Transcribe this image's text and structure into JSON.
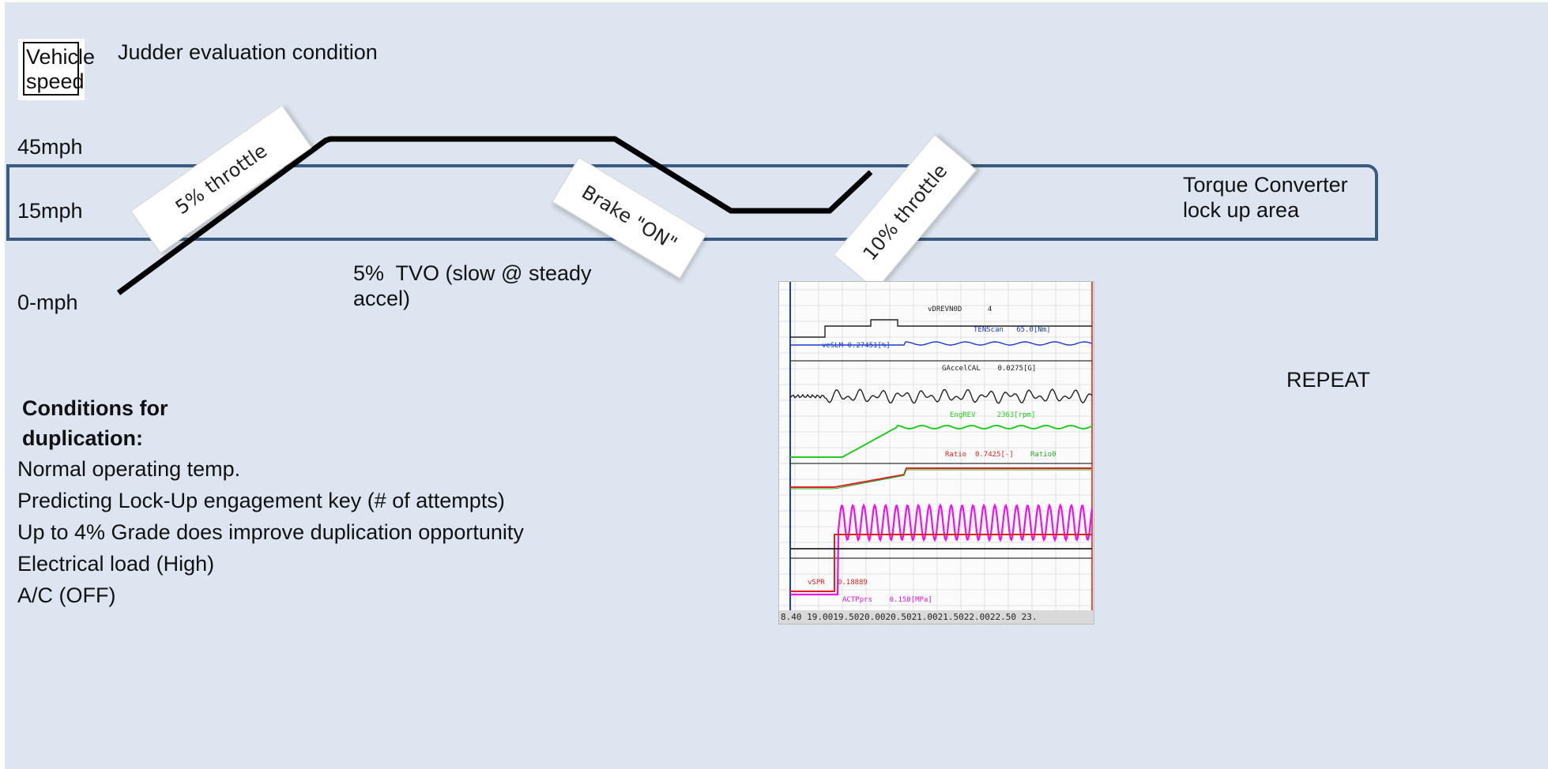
{
  "diagram": {
    "y_axis_label": "Vehicle speed",
    "title": "Judder evaluation condition",
    "speed_levels": [
      "45mph",
      "15mph",
      "0-mph"
    ],
    "lockup_area_label": "Torque Converter\nlock up area",
    "repeat_label": "REPEAT",
    "tvo_note": "5%  TVO (slow @ steady\naccel)",
    "phase_labels": [
      "5% throttle",
      "Brake \"ON\"",
      "10% throttle"
    ],
    "colors": {
      "background": "#dde6f0",
      "lockup_border": "#3a5a80",
      "profile_line": "#000000"
    }
  },
  "conditions": {
    "heading": "Conditions for\nduplication:",
    "items": [
      "Normal operating temp.",
      "Predicting Lock-Up engagement key (# of attempts)",
      "Up to 4% Grade does improve duplication opportunity",
      "Electrical load (High)",
      "A/C (OFF)"
    ]
  },
  "scope_capture": {
    "channels": [
      {
        "name": "vDREVN0D",
        "value": "4",
        "color": "#222222"
      },
      {
        "name": "TENScan",
        "value": "65.0[Nm]",
        "color": "#1a3ad0"
      },
      {
        "name": "veSLM",
        "value": "0.27451[%]",
        "color": "#1a3ad0"
      },
      {
        "name": "GAccelCAL",
        "value": "0.0275[G]",
        "color": "#222222"
      },
      {
        "name": "EngREV",
        "value": "2363[rpm]",
        "color": "#22cc22"
      },
      {
        "name": "Ratio",
        "value": "0.7425[-]",
        "color": "#dd2222"
      },
      {
        "name": "Ratio0",
        "value": "",
        "color": "#22aa22"
      },
      {
        "name": "vSPR",
        "value": "0.18889",
        "color": "#dd2222"
      },
      {
        "name": "ACTPprs",
        "value": "0.150[MPa]",
        "color": "#ee11ee"
      }
    ],
    "time_axis": "8.40 19.0019.5020.0020.5021.0021.5022.0022.50   23."
  }
}
